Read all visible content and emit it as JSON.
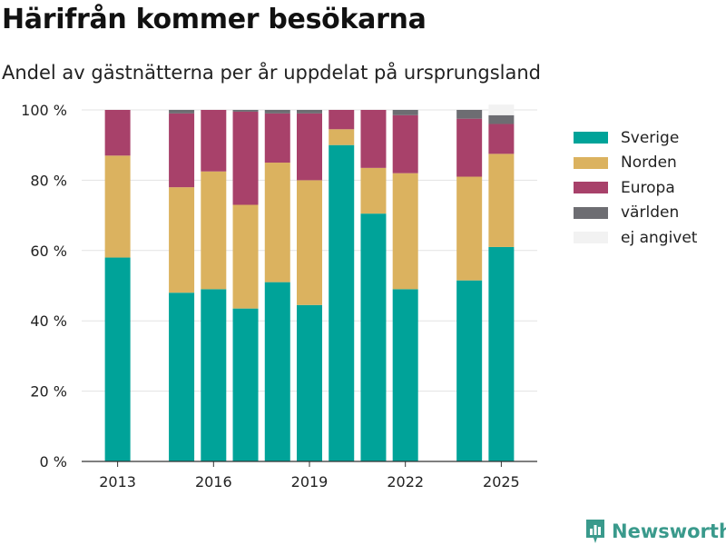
{
  "header": {
    "title": "Härifrån kommer besökarna",
    "subtitle": "Andel av gästnätterna per år uppdelat på ursprungsland"
  },
  "brand": {
    "name": "Newsworthy"
  },
  "chart_data": {
    "type": "bar",
    "stacked": true,
    "title": "Härifrån kommer besökarna",
    "subtitle": "Andel av gästnätterna per år uppdelat på ursprungsland",
    "x": [
      2013,
      2015,
      2016,
      2017,
      2018,
      2019,
      2020,
      2021,
      2022,
      2024,
      2025
    ],
    "x_ticks": [
      "2013",
      "2016",
      "2019",
      "2022",
      "2025"
    ],
    "ylim": [
      0,
      100
    ],
    "y_ticks": [
      "0 %",
      "20 %",
      "40 %",
      "60 %",
      "80 %",
      "100 %"
    ],
    "grid": true,
    "legend_position": "right",
    "series": [
      {
        "name": "Sverige",
        "color": "#00a399",
        "values": [
          58,
          48,
          49,
          43.5,
          51,
          44.5,
          90,
          70.5,
          49,
          51.5,
          61
        ]
      },
      {
        "name": "Norden",
        "color": "#dbb25f",
        "values": [
          29,
          30,
          33.5,
          29.5,
          34,
          35.5,
          4.5,
          13,
          33,
          29.5,
          26.5
        ]
      },
      {
        "name": "Europa",
        "color": "#a8416a",
        "values": [
          13,
          21,
          17.5,
          26.5,
          14,
          19,
          5.5,
          16.5,
          16.5,
          16.5,
          8.5
        ]
      },
      {
        "name": "världen",
        "color": "#6d6d72",
        "values": [
          0,
          1,
          0,
          0.5,
          1,
          1,
          0,
          0,
          1.5,
          2.5,
          2.5
        ]
      },
      {
        "name": "ej angivet",
        "color": "#f2f2f2",
        "values": [
          0,
          0,
          0,
          0,
          0,
          0,
          0,
          0,
          0,
          0,
          3
        ]
      }
    ]
  }
}
